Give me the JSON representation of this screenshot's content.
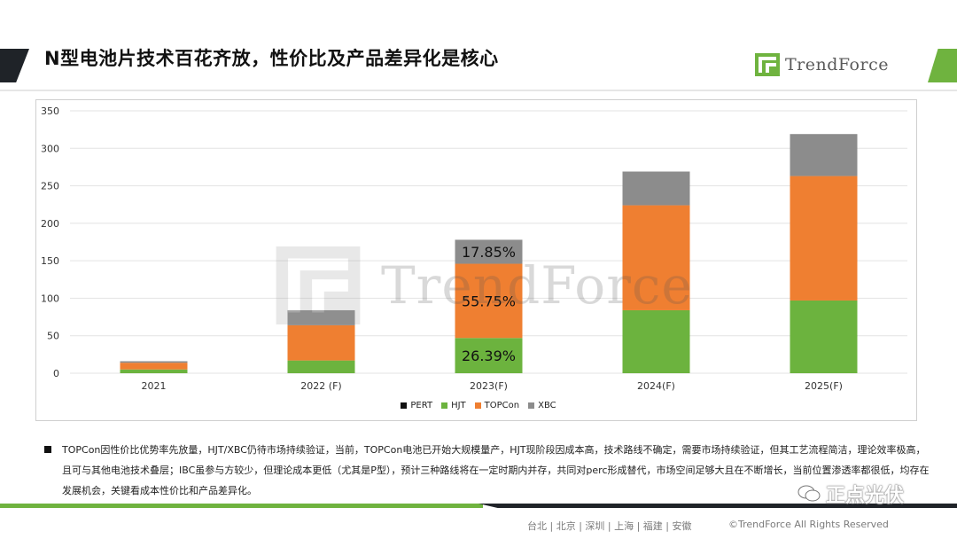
{
  "header": {
    "title": "N型电池片技术百花齐放，性价比及产品差异化是核心",
    "brand": "TrendForce"
  },
  "watermark": {
    "text": "TrendForce"
  },
  "chart_data": {
    "type": "bar",
    "stacked": true,
    "categories": [
      "2021",
      "2022 (F)",
      "2023(F)",
      "2024(F)",
      "2025(F)"
    ],
    "series": [
      {
        "name": "PERT",
        "color": "#111111",
        "values": [
          0,
          0,
          0,
          0,
          0
        ]
      },
      {
        "name": "HJT",
        "color": "#6cb33e",
        "values": [
          5,
          17,
          47,
          84,
          97
        ]
      },
      {
        "name": "TOPCon",
        "color": "#ef7f31",
        "values": [
          9,
          47,
          99,
          140,
          166
        ]
      },
      {
        "name": "XBC",
        "color": "#8c8c8c",
        "values": [
          2,
          20,
          32,
          45,
          56
        ]
      }
    ],
    "yticks": [
      0,
      50,
      100,
      150,
      200,
      250,
      300,
      350
    ],
    "ylim": [
      0,
      350
    ],
    "grid": true,
    "legend_position": "bottom",
    "annotations": [
      {
        "category": "2023(F)",
        "series": "HJT",
        "text": "26.39%"
      },
      {
        "category": "2023(F)",
        "series": "TOPCon",
        "text": "55.75%"
      },
      {
        "category": "2023(F)",
        "series": "XBC",
        "text": "17.85%"
      }
    ]
  },
  "note": {
    "text": "TOPCon因性价比优势率先放量，HJT/XBC仍待市场持续验证，当前，TOPCon电池已开始大规模量产，HJT现阶段因成本高，技术路线不确定，需要市场持续验证，但其工艺流程简洁，理论效率极高，且可与其他电池技术叠层；IBC虽参与方较少，但理论成本更低（尤其是P型），预计三种路线将在一定时期内并存，共同对perc形成替代，市场空间足够大且在不断增长，当前位置渗透率都很低，均存在发展机会，关键看成本性价比和产品差异化。"
  },
  "footer": {
    "cities": "台北 | 北京 | 深圳 | 上海 | 福建 | 安徽",
    "copyright": "©TrendForce All Rights Reserved",
    "wechat": "正点光伏"
  }
}
